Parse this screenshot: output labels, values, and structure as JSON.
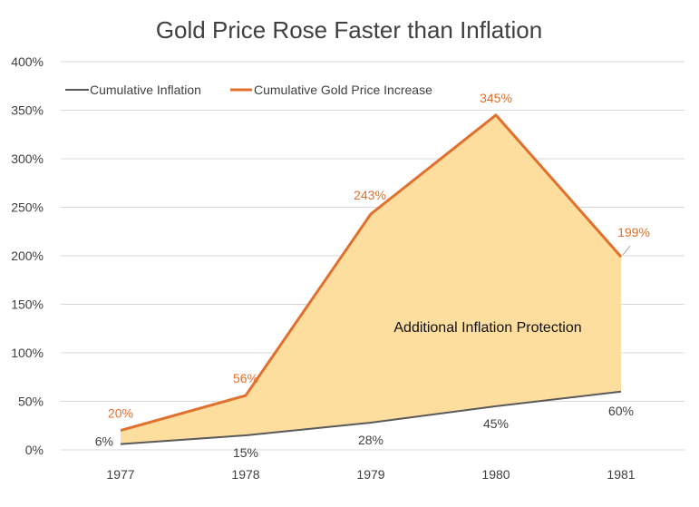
{
  "chart_data": {
    "type": "line",
    "title": "Gold Price Rose Faster than Inflation",
    "categories": [
      "1977",
      "1978",
      "1979",
      "1980",
      "1981"
    ],
    "series": [
      {
        "name": "Cumulative Inflation",
        "values": [
          6,
          15,
          28,
          45,
          60
        ],
        "labels": [
          "6%",
          "15%",
          "28%",
          "45%",
          "60%"
        ],
        "color": "#595959"
      },
      {
        "name": "Cumulative Gold Price Increase",
        "values": [
          20,
          56,
          243,
          345,
          199
        ],
        "labels": [
          "20%",
          "56%",
          "243%",
          "345%",
          "199%"
        ],
        "color": "#E0702C"
      }
    ],
    "area_between": {
      "fill": "#FDDE9F",
      "label": "Additional Inflation Protection"
    },
    "yticks": [
      "0%",
      "50%",
      "100%",
      "150%",
      "200%",
      "250%",
      "300%",
      "350%",
      "400%"
    ],
    "ylim": [
      0,
      400
    ],
    "y_unit": "%",
    "grid": true,
    "legend_position": "top-left"
  }
}
